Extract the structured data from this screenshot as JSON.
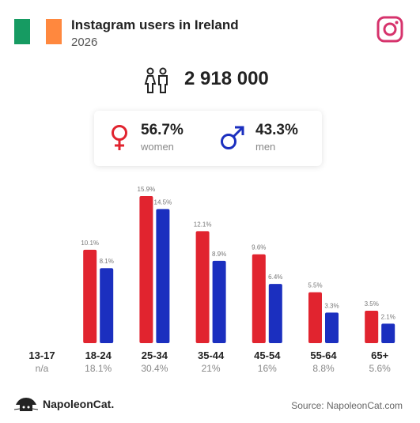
{
  "header": {
    "title": "Instagram users in Ireland",
    "subtitle": "2026",
    "flag_colors": [
      "#169b62",
      "#ffffff",
      "#ff883e"
    ]
  },
  "total": "2 918 000",
  "gender": {
    "women_pct": "56.7%",
    "women_label": "women",
    "men_pct": "43.3%",
    "men_label": "men"
  },
  "colors": {
    "women": "#e1242f",
    "men": "#1b2fbf"
  },
  "chart_data": {
    "type": "bar",
    "categories": [
      "13-17",
      "18-24",
      "25-34",
      "35-44",
      "45-54",
      "55-64",
      "65+"
    ],
    "category_totals": [
      "n/a",
      "18.1%",
      "30.4%",
      "21%",
      "16%",
      "8.8%",
      "5.6%"
    ],
    "series": [
      {
        "name": "women",
        "values": [
          null,
          10.1,
          15.9,
          12.1,
          9.6,
          5.5,
          3.5
        ],
        "labels": [
          "",
          "10.1%",
          "15.9%",
          "12.1%",
          "9.6%",
          "5.5%",
          "3.5%"
        ],
        "color": "#e1242f"
      },
      {
        "name": "men",
        "values": [
          null,
          8.1,
          14.5,
          8.9,
          6.4,
          3.3,
          2.1
        ],
        "labels": [
          "",
          "8.1%",
          "14.5%",
          "8.9%",
          "6.4%",
          "3.3%",
          "2.1%"
        ],
        "color": "#1b2fbf"
      }
    ],
    "ylim": [
      0,
      16
    ]
  },
  "footer": {
    "brand": "NapoleonCat.",
    "source": "Source: NapoleonCat.com"
  }
}
